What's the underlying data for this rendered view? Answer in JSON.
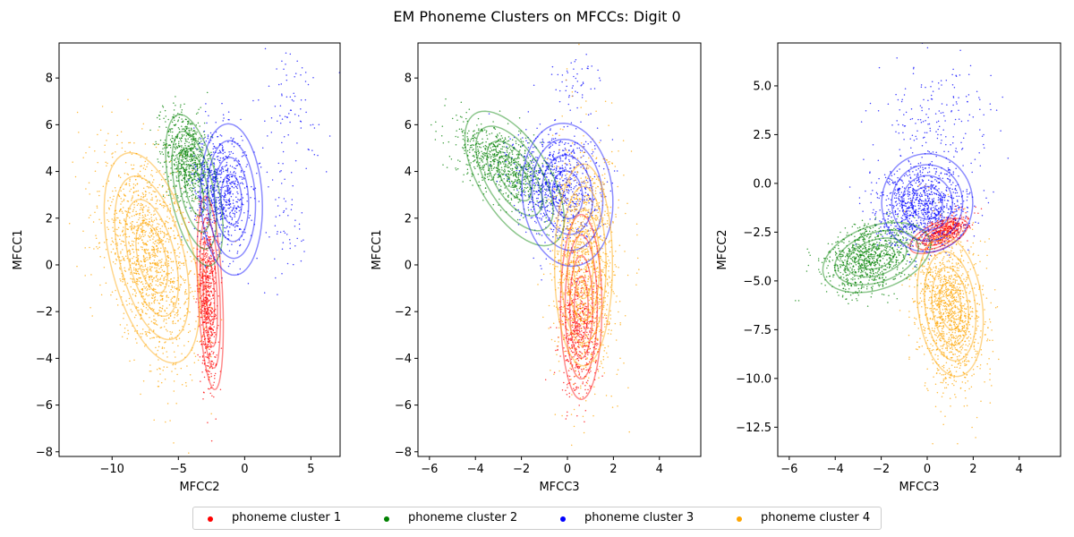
{
  "figure": {
    "title": "EM Phoneme Clusters on MFCCs: Digit 0"
  },
  "legend": {
    "position": "bottom-center",
    "entries": [
      {
        "label": "phoneme cluster 1",
        "color": "#ff0000"
      },
      {
        "label": "phoneme cluster 2",
        "color": "#008000"
      },
      {
        "label": "phoneme cluster 3",
        "color": "#0000ff"
      },
      {
        "label": "phoneme cluster 4",
        "color": "#ffa500"
      }
    ]
  },
  "chart_data": [
    {
      "type": "scatter",
      "xlabel": "MFCC2",
      "ylabel": "MFCC1",
      "xlim": [
        -14,
        7.2
      ],
      "ylim": [
        -8.2,
        9.5
      ],
      "xticks": [
        -10,
        -5,
        0,
        5
      ],
      "yticks": [
        -8,
        -6,
        -4,
        -2,
        0,
        2,
        4,
        6,
        8
      ],
      "grid": false,
      "clusters": [
        {
          "name": "phoneme cluster 1",
          "color": "#ff0000",
          "mean": [
            -2.8,
            -1.5
          ],
          "sd": [
            0.35,
            2.0
          ],
          "rho": -0.3,
          "n": 600,
          "contours": [
            {
              "mean": [
                -2.6,
                -1.2
              ],
              "sd": [
                0.55,
                2.3
              ],
              "rho": -0.35
            }
          ]
        },
        {
          "name": "phoneme cluster 2",
          "color": "#008000",
          "mean": [
            -4.3,
            4.6
          ],
          "sd": [
            0.9,
            1.0
          ],
          "rho": -0.3,
          "n": 700,
          "contours": [
            {
              "mean": [
                -3.8,
                3.2
              ],
              "sd": [
                1.2,
                1.8
              ],
              "rho": -0.5
            }
          ]
        },
        {
          "name": "phoneme cluster 3",
          "color": "#0000ff",
          "mean": [
            -1.8,
            3.2
          ],
          "sd": [
            1.0,
            1.3
          ],
          "rho": -0.1,
          "n": 700,
          "contours": [
            {
              "mean": [
                -1.0,
                2.8
              ],
              "sd": [
                1.3,
                1.8
              ],
              "rho": -0.1
            }
          ],
          "outliers": [
            {
              "mean": [
                3.5,
                6.5
              ],
              "sd": [
                1.5,
                1.5
              ],
              "n": 90
            },
            {
              "mean": [
                3.0,
                1.5
              ],
              "sd": [
                1.0,
                1.2
              ],
              "n": 50
            }
          ]
        },
        {
          "name": "phoneme cluster 4",
          "color": "#ffa500",
          "mean": [
            -7.2,
            0.3
          ],
          "sd": [
            1.8,
            2.2
          ],
          "rho": -0.45,
          "n": 1400,
          "contours": [
            {
              "mean": [
                -7.0,
                0.3
              ],
              "sd": [
                2.0,
                2.5
              ],
              "rho": -0.45
            }
          ]
        }
      ]
    },
    {
      "type": "scatter",
      "xlabel": "MFCC3",
      "ylabel": "MFCC1",
      "xlim": [
        -6.5,
        5.8
      ],
      "ylim": [
        -8.2,
        9.5
      ],
      "xticks": [
        -6,
        -4,
        -2,
        0,
        2,
        4
      ],
      "yticks": [
        -8,
        -6,
        -4,
        -2,
        0,
        2,
        4,
        6,
        8
      ],
      "grid": false,
      "clusters": [
        {
          "name": "phoneme cluster 1",
          "color": "#ff0000",
          "mean": [
            0.5,
            -3.0
          ],
          "sd": [
            0.4,
            1.3
          ],
          "rho": 0.0,
          "n": 500,
          "contours": [
            {
              "mean": [
                0.6,
                -1.8
              ],
              "sd": [
                0.5,
                2.2
              ],
              "rho": 0.0
            }
          ]
        },
        {
          "name": "phoneme cluster 2",
          "color": "#008000",
          "mean": [
            -2.8,
            4.3
          ],
          "sd": [
            1.0,
            0.9
          ],
          "rho": -0.6,
          "n": 800,
          "contours": [
            {
              "mean": [
                -2.3,
                3.7
              ],
              "sd": [
                1.2,
                1.6
              ],
              "rho": -0.6
            }
          ]
        },
        {
          "name": "phoneme cluster 3",
          "color": "#0000ff",
          "mean": [
            -0.5,
            3.5
          ],
          "sd": [
            0.9,
            1.2
          ],
          "rho": -0.1,
          "n": 800,
          "contours": [
            {
              "mean": [
                0.0,
                3.0
              ],
              "sd": [
                1.1,
                1.7
              ],
              "rho": -0.1
            }
          ],
          "outliers": [
            {
              "mean": [
                0.3,
                7.8
              ],
              "sd": [
                0.6,
                0.6
              ],
              "n": 50
            }
          ]
        },
        {
          "name": "phoneme cluster 4",
          "color": "#ffa500",
          "mean": [
            0.8,
            0.0
          ],
          "sd": [
            0.7,
            2.5
          ],
          "rho": 0.0,
          "n": 1200,
          "contours": [
            {
              "mean": [
                0.7,
                0.0
              ],
              "sd": [
                0.7,
                2.4
              ],
              "rho": 0.0
            }
          ]
        }
      ]
    },
    {
      "type": "scatter",
      "xlabel": "MFCC3",
      "ylabel": "MFCC2",
      "xlim": [
        -6.5,
        5.8
      ],
      "ylim": [
        -14,
        7.2
      ],
      "xticks": [
        -6,
        -4,
        -2,
        0,
        2,
        4
      ],
      "yticks": [
        -12.5,
        -10.0,
        -7.5,
        -5.0,
        -2.5,
        0.0,
        2.5,
        5.0
      ],
      "grid": false,
      "clusters": [
        {
          "name": "phoneme cluster 1",
          "color": "#ff0000",
          "mean": [
            0.8,
            -2.4
          ],
          "sd": [
            0.5,
            0.4
          ],
          "rho": 0.6,
          "n": 400,
          "contours": [
            {
              "mean": [
                0.5,
                -2.7
              ],
              "sd": [
                0.7,
                0.5
              ],
              "rho": 0.6
            }
          ]
        },
        {
          "name": "phoneme cluster 2",
          "color": "#008000",
          "mean": [
            -2.5,
            -3.8
          ],
          "sd": [
            1.0,
            0.9
          ],
          "rho": 0.3,
          "n": 900,
          "contours": [
            {
              "mean": [
                -2.2,
                -3.8
              ],
              "sd": [
                1.3,
                1.0
              ],
              "rho": 0.35
            }
          ]
        },
        {
          "name": "phoneme cluster 3",
          "color": "#0000ff",
          "mean": [
            -0.2,
            -1.2
          ],
          "sd": [
            1.0,
            1.0
          ],
          "rho": 0.0,
          "n": 900,
          "contours": [
            {
              "mean": [
                0.0,
                -1.0
              ],
              "sd": [
                1.1,
                1.4
              ],
              "rho": 0.0
            }
          ],
          "outliers": [
            {
              "mean": [
                0.5,
                3.0
              ],
              "sd": [
                1.2,
                1.8
              ],
              "n": 200
            }
          ]
        },
        {
          "name": "phoneme cluster 4",
          "color": "#ffa500",
          "mean": [
            1.0,
            -6.5
          ],
          "sd": [
            0.7,
            2.0
          ],
          "rho": -0.2,
          "n": 1200,
          "contours": [
            {
              "mean": [
                1.0,
                -6.3
              ],
              "sd": [
                0.8,
                2.0
              ],
              "rho": -0.2
            }
          ]
        }
      ]
    }
  ]
}
